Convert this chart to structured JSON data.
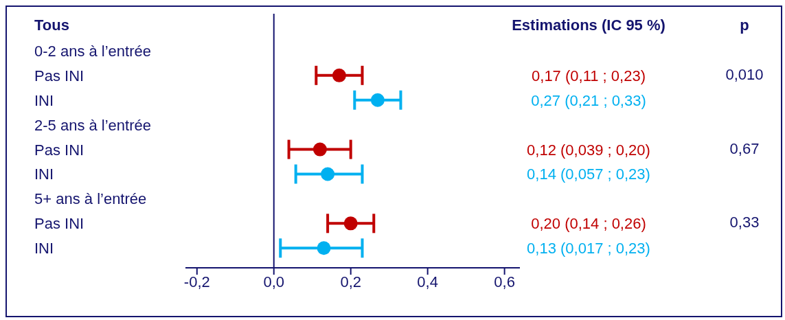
{
  "chart_data": {
    "type": "scatter",
    "orientation": "horizontal",
    "ylabel": "Tous",
    "categories": [
      "0-2 ans à l’entrée",
      "Pas INI",
      "INI",
      "2-5 ans à l’entrée",
      "Pas INI",
      "INI",
      "5+ ans à l’entrée",
      "Pas INI",
      "INI"
    ],
    "series": [
      {
        "colors": [
          null,
          "#c00000",
          "#00b0f0",
          null,
          "#c00000",
          "#00b0f0",
          null,
          "#c00000",
          "#00b0f0"
        ],
        "values": [
          null,
          0.17,
          0.27,
          null,
          0.12,
          0.14,
          null,
          0.2,
          0.13
        ],
        "errors": [
          null,
          [
            0.11,
            0.23
          ],
          [
            0.21,
            0.33
          ],
          null,
          [
            0.039,
            0.2
          ],
          [
            0.057,
            0.23
          ],
          null,
          [
            0.14,
            0.26
          ],
          [
            0.017,
            0.23
          ]
        ],
        "value_labels": [
          null,
          "0,17 (0,11 ; 0,23)",
          "0,27 (0,21 ; 0,33)",
          null,
          "0,12 (0,039 ; 0,20)",
          "0,14 (0,057 ; 0,23)",
          null,
          "0,20 (0,14 ; 0,26)",
          "0,13 (0,017 ; 0,23)"
        ]
      }
    ],
    "annotations": [
      "Estimations (IC 95 %)",
      "p",
      "0,010",
      "0,67",
      "0,33"
    ],
    "xlim": [
      -0.23,
      0.64
    ],
    "xticks": [
      {
        "value": -0.2,
        "label": "-0,2"
      },
      {
        "value": 0,
        "label": "0,0"
      },
      {
        "value": 0.2,
        "label": "0,2"
      },
      {
        "value": 0.4,
        "label": "0,4"
      },
      {
        "value": 0.6,
        "label": "0,6"
      }
    ],
    "ref_lines": [
      {
        "axis": "x",
        "value": 0,
        "color": "#14146e"
      }
    ],
    "marker": "circle",
    "legend": false,
    "grid": false
  }
}
